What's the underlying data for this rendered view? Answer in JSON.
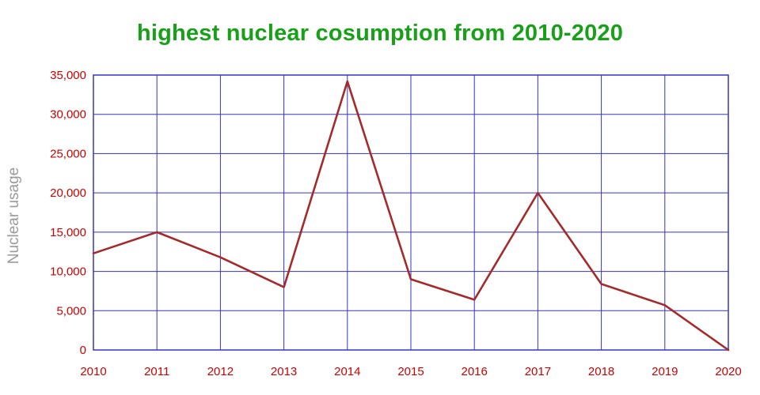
{
  "title": "highest nuclear cosumption from 2010-2020",
  "colors": {
    "title": "#18a018",
    "grid": "#3333cc",
    "tick_label": "#cc0000",
    "line": "#a52a2a",
    "y_axis_label": "#9a9a9a",
    "background": "#ffffff"
  },
  "chart_data": {
    "type": "line",
    "title": "highest nuclear cosumption from 2010-2020",
    "xlabel": "",
    "ylabel": "Nuclear usage",
    "x": [
      2010,
      2011,
      2012,
      2013,
      2014,
      2015,
      2016,
      2017,
      2018,
      2019,
      2020
    ],
    "series": [
      {
        "name": "Nuclear usage",
        "values": [
          12300,
          15000,
          11800,
          8000,
          34200,
          9000,
          6400,
          20000,
          8400,
          5700,
          0
        ]
      }
    ],
    "ylim": [
      0,
      35000
    ],
    "ytick_step": 5000,
    "ytick_labels": [
      "0",
      "5,000",
      "10,000",
      "15,000",
      "20,000",
      "25,000",
      "30,000",
      "35,000"
    ],
    "grid": true,
    "legend_position": "none"
  }
}
